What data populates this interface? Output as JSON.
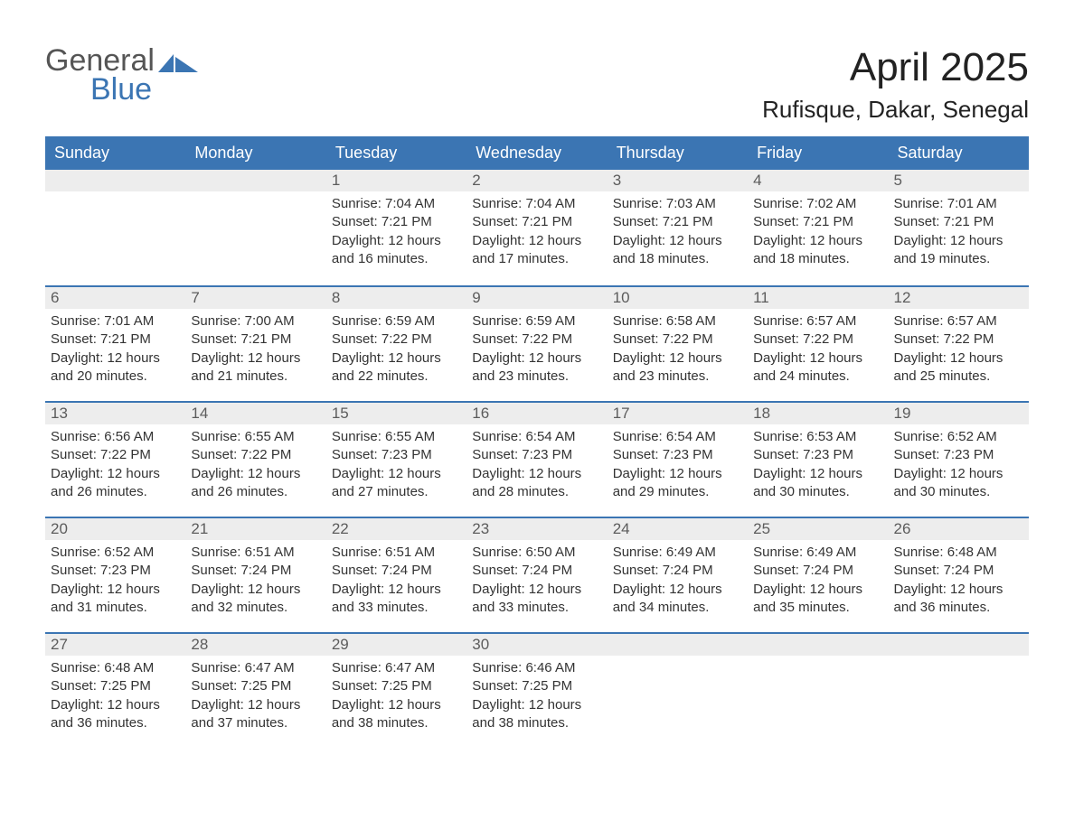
{
  "logo": {
    "word1": "General",
    "word2": "Blue"
  },
  "title": "April 2025",
  "location": "Rufisque, Dakar, Senegal",
  "colors": {
    "header_bg": "#3b75b3",
    "header_text": "#ffffff",
    "daynum_bg": "#ededed",
    "daynum_text": "#5c5c5c",
    "text": "#333333",
    "logo_gray": "#555555",
    "logo_blue": "#3b75b3"
  },
  "dayNames": [
    "Sunday",
    "Monday",
    "Tuesday",
    "Wednesday",
    "Thursday",
    "Friday",
    "Saturday"
  ],
  "weeks": [
    [
      {
        "n": "",
        "sunrise": "",
        "sunset": "",
        "daylight": ""
      },
      {
        "n": "",
        "sunrise": "",
        "sunset": "",
        "daylight": ""
      },
      {
        "n": "1",
        "sunrise": "Sunrise: 7:04 AM",
        "sunset": "Sunset: 7:21 PM",
        "daylight": "Daylight: 12 hours and 16 minutes."
      },
      {
        "n": "2",
        "sunrise": "Sunrise: 7:04 AM",
        "sunset": "Sunset: 7:21 PM",
        "daylight": "Daylight: 12 hours and 17 minutes."
      },
      {
        "n": "3",
        "sunrise": "Sunrise: 7:03 AM",
        "sunset": "Sunset: 7:21 PM",
        "daylight": "Daylight: 12 hours and 18 minutes."
      },
      {
        "n": "4",
        "sunrise": "Sunrise: 7:02 AM",
        "sunset": "Sunset: 7:21 PM",
        "daylight": "Daylight: 12 hours and 18 minutes."
      },
      {
        "n": "5",
        "sunrise": "Sunrise: 7:01 AM",
        "sunset": "Sunset: 7:21 PM",
        "daylight": "Daylight: 12 hours and 19 minutes."
      }
    ],
    [
      {
        "n": "6",
        "sunrise": "Sunrise: 7:01 AM",
        "sunset": "Sunset: 7:21 PM",
        "daylight": "Daylight: 12 hours and 20 minutes."
      },
      {
        "n": "7",
        "sunrise": "Sunrise: 7:00 AM",
        "sunset": "Sunset: 7:21 PM",
        "daylight": "Daylight: 12 hours and 21 minutes."
      },
      {
        "n": "8",
        "sunrise": "Sunrise: 6:59 AM",
        "sunset": "Sunset: 7:22 PM",
        "daylight": "Daylight: 12 hours and 22 minutes."
      },
      {
        "n": "9",
        "sunrise": "Sunrise: 6:59 AM",
        "sunset": "Sunset: 7:22 PM",
        "daylight": "Daylight: 12 hours and 23 minutes."
      },
      {
        "n": "10",
        "sunrise": "Sunrise: 6:58 AM",
        "sunset": "Sunset: 7:22 PM",
        "daylight": "Daylight: 12 hours and 23 minutes."
      },
      {
        "n": "11",
        "sunrise": "Sunrise: 6:57 AM",
        "sunset": "Sunset: 7:22 PM",
        "daylight": "Daylight: 12 hours and 24 minutes."
      },
      {
        "n": "12",
        "sunrise": "Sunrise: 6:57 AM",
        "sunset": "Sunset: 7:22 PM",
        "daylight": "Daylight: 12 hours and 25 minutes."
      }
    ],
    [
      {
        "n": "13",
        "sunrise": "Sunrise: 6:56 AM",
        "sunset": "Sunset: 7:22 PM",
        "daylight": "Daylight: 12 hours and 26 minutes."
      },
      {
        "n": "14",
        "sunrise": "Sunrise: 6:55 AM",
        "sunset": "Sunset: 7:22 PM",
        "daylight": "Daylight: 12 hours and 26 minutes."
      },
      {
        "n": "15",
        "sunrise": "Sunrise: 6:55 AM",
        "sunset": "Sunset: 7:23 PM",
        "daylight": "Daylight: 12 hours and 27 minutes."
      },
      {
        "n": "16",
        "sunrise": "Sunrise: 6:54 AM",
        "sunset": "Sunset: 7:23 PM",
        "daylight": "Daylight: 12 hours and 28 minutes."
      },
      {
        "n": "17",
        "sunrise": "Sunrise: 6:54 AM",
        "sunset": "Sunset: 7:23 PM",
        "daylight": "Daylight: 12 hours and 29 minutes."
      },
      {
        "n": "18",
        "sunrise": "Sunrise: 6:53 AM",
        "sunset": "Sunset: 7:23 PM",
        "daylight": "Daylight: 12 hours and 30 minutes."
      },
      {
        "n": "19",
        "sunrise": "Sunrise: 6:52 AM",
        "sunset": "Sunset: 7:23 PM",
        "daylight": "Daylight: 12 hours and 30 minutes."
      }
    ],
    [
      {
        "n": "20",
        "sunrise": "Sunrise: 6:52 AM",
        "sunset": "Sunset: 7:23 PM",
        "daylight": "Daylight: 12 hours and 31 minutes."
      },
      {
        "n": "21",
        "sunrise": "Sunrise: 6:51 AM",
        "sunset": "Sunset: 7:24 PM",
        "daylight": "Daylight: 12 hours and 32 minutes."
      },
      {
        "n": "22",
        "sunrise": "Sunrise: 6:51 AM",
        "sunset": "Sunset: 7:24 PM",
        "daylight": "Daylight: 12 hours and 33 minutes."
      },
      {
        "n": "23",
        "sunrise": "Sunrise: 6:50 AM",
        "sunset": "Sunset: 7:24 PM",
        "daylight": "Daylight: 12 hours and 33 minutes."
      },
      {
        "n": "24",
        "sunrise": "Sunrise: 6:49 AM",
        "sunset": "Sunset: 7:24 PM",
        "daylight": "Daylight: 12 hours and 34 minutes."
      },
      {
        "n": "25",
        "sunrise": "Sunrise: 6:49 AM",
        "sunset": "Sunset: 7:24 PM",
        "daylight": "Daylight: 12 hours and 35 minutes."
      },
      {
        "n": "26",
        "sunrise": "Sunrise: 6:48 AM",
        "sunset": "Sunset: 7:24 PM",
        "daylight": "Daylight: 12 hours and 36 minutes."
      }
    ],
    [
      {
        "n": "27",
        "sunrise": "Sunrise: 6:48 AM",
        "sunset": "Sunset: 7:25 PM",
        "daylight": "Daylight: 12 hours and 36 minutes."
      },
      {
        "n": "28",
        "sunrise": "Sunrise: 6:47 AM",
        "sunset": "Sunset: 7:25 PM",
        "daylight": "Daylight: 12 hours and 37 minutes."
      },
      {
        "n": "29",
        "sunrise": "Sunrise: 6:47 AM",
        "sunset": "Sunset: 7:25 PM",
        "daylight": "Daylight: 12 hours and 38 minutes."
      },
      {
        "n": "30",
        "sunrise": "Sunrise: 6:46 AM",
        "sunset": "Sunset: 7:25 PM",
        "daylight": "Daylight: 12 hours and 38 minutes."
      },
      {
        "n": "",
        "sunrise": "",
        "sunset": "",
        "daylight": ""
      },
      {
        "n": "",
        "sunrise": "",
        "sunset": "",
        "daylight": ""
      },
      {
        "n": "",
        "sunrise": "",
        "sunset": "",
        "daylight": ""
      }
    ]
  ]
}
